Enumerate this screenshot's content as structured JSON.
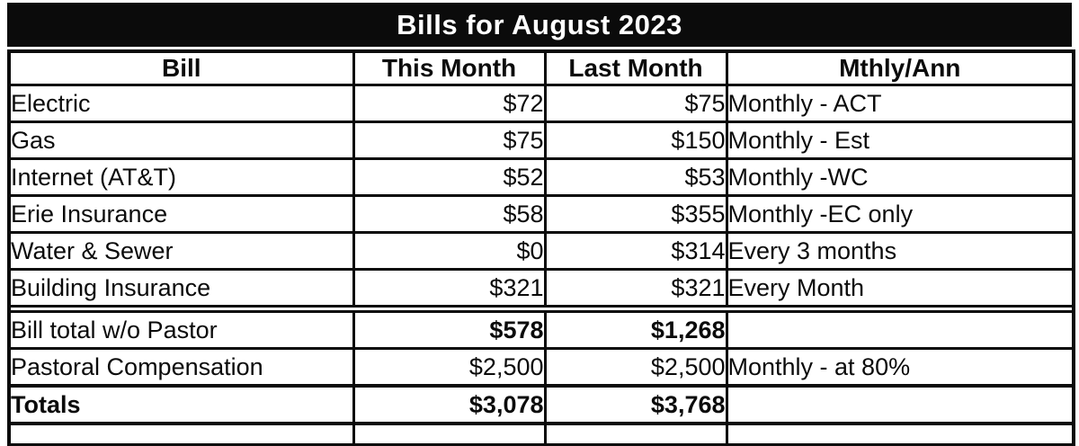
{
  "title": "Bills for August 2023",
  "table": {
    "columns": [
      "Bill",
      "This Month",
      "Last Month",
      "Mthly/Ann"
    ],
    "rows": [
      {
        "bill": "Electric",
        "this_month": "$72",
        "last_month": "$75",
        "schedule": "Monthly - ACT",
        "emphasis": "none"
      },
      {
        "bill": "Gas",
        "this_month": "$75",
        "last_month": "$150",
        "schedule": "Monthly - Est",
        "emphasis": "none"
      },
      {
        "bill": "Internet (AT&T)",
        "this_month": "$52",
        "last_month": "$53",
        "schedule": "Monthly -WC",
        "emphasis": "none"
      },
      {
        "bill": "Erie Insurance",
        "this_month": "$58",
        "last_month": "$355",
        "schedule": "Monthly -EC only",
        "emphasis": "none"
      },
      {
        "bill": "Water & Sewer",
        "this_month": "$0",
        "last_month": "$314",
        "schedule": "Every 3 months",
        "emphasis": "none"
      },
      {
        "bill": "Building Insurance",
        "this_month": "$321",
        "last_month": "$321",
        "schedule": "Every Month",
        "emphasis": "none"
      },
      {
        "bill": "Bill total w/o Pastor",
        "this_month": "$578",
        "last_month": "$1,268",
        "schedule": "",
        "emphasis": "amounts",
        "separator_above": true
      },
      {
        "bill": "Pastoral Compensation",
        "this_month": "$2,500",
        "last_month": "$2,500",
        "schedule": "Monthly - at 80%",
        "emphasis": "none"
      },
      {
        "bill": "Totals",
        "this_month": "$3,078",
        "last_month": "$3,768",
        "schedule": "",
        "emphasis": "row",
        "thick_border_above": true
      }
    ]
  },
  "colors": {
    "ink": "#0b0b0b",
    "title_text": "#ffffff",
    "page_bg": "#ffffff"
  }
}
